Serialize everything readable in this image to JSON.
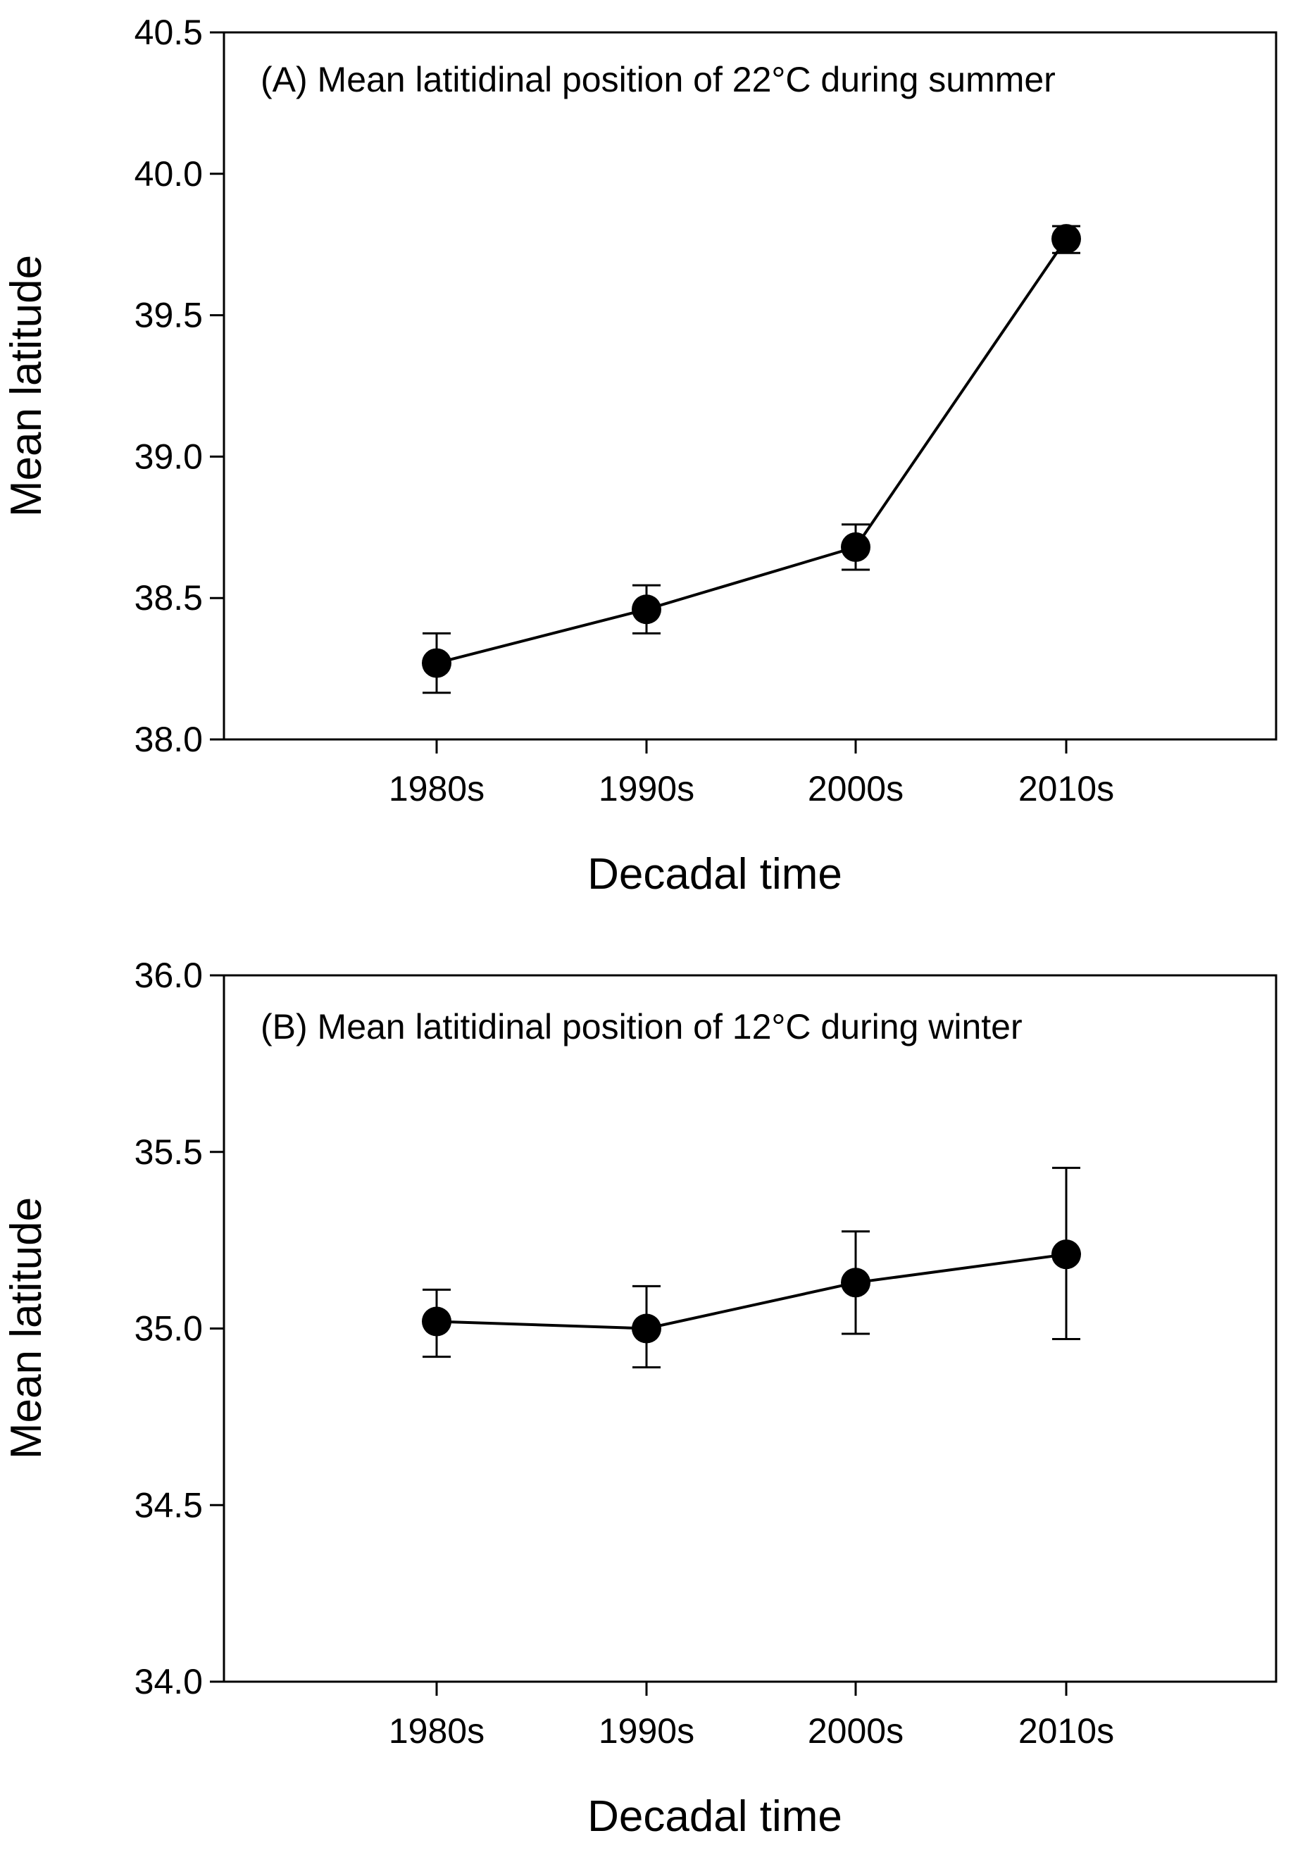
{
  "chart_data": [
    {
      "type": "line",
      "title": "(A) Mean latitidinal position of 22°C during summer",
      "xlabel": "Decadal time",
      "ylabel": "Mean latitude",
      "categories": [
        "1980s",
        "1990s",
        "2000s",
        "2010s"
      ],
      "series": [
        {
          "name": "22°C summer",
          "values": [
            38.27,
            38.46,
            38.68,
            39.77
          ],
          "err_low": [
            38.165,
            38.375,
            38.6,
            39.72
          ],
          "err_high": [
            38.375,
            38.545,
            38.76,
            39.815
          ]
        }
      ],
      "ylim": [
        38.0,
        40.5
      ],
      "yticks": [
        38.0,
        38.5,
        39.0,
        39.5,
        40.0,
        40.5
      ],
      "ytick_labels": [
        "38.0",
        "38.5",
        "39.0",
        "39.5",
        "40.0",
        "40.5"
      ],
      "marker_color": "#000000",
      "line_color": "#000000"
    },
    {
      "type": "line",
      "title": "(B) Mean latitidinal position of 12°C during winter",
      "xlabel": "Decadal time",
      "ylabel": "Mean latitude",
      "categories": [
        "1980s",
        "1990s",
        "2000s",
        "2010s"
      ],
      "series": [
        {
          "name": "12°C winter",
          "values": [
            35.02,
            35.0,
            35.13,
            35.21
          ],
          "err_low": [
            34.92,
            34.89,
            34.985,
            34.97
          ],
          "err_high": [
            35.11,
            35.12,
            35.275,
            35.455
          ]
        }
      ],
      "ylim": [
        34.0,
        36.0
      ],
      "yticks": [
        34.0,
        34.5,
        35.0,
        35.5,
        36.0
      ],
      "ytick_labels": [
        "34.0",
        "34.5",
        "35.0",
        "35.5",
        "36.0"
      ],
      "marker_color": "#000000",
      "line_color": "#000000"
    }
  ]
}
